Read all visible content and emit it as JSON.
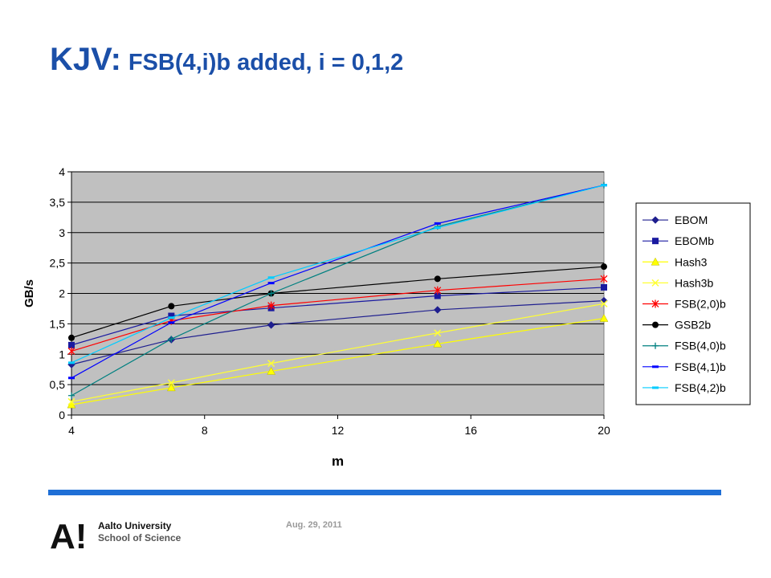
{
  "slide": {
    "title_main": "KJV:",
    "title_sub": "FSB(4,i)b added, i = 0,1,2",
    "footer_date": "Aug. 29, 2011",
    "logo_line1": "Aalto University",
    "logo_line2": "School of Science",
    "logo_mark": "A!",
    "rule_color": "#1f6fd6",
    "title_color": "#1b4fa8"
  },
  "chart_data": {
    "type": "line",
    "xlabel": "m",
    "ylabel": "GB/s",
    "xlim": [
      4,
      20
    ],
    "ylim": [
      0,
      4
    ],
    "x_ticks": [
      4,
      8,
      12,
      16,
      20
    ],
    "y_ticks": [
      "0",
      "0,5",
      "1",
      "1,5",
      "2",
      "2,5",
      "3",
      "3,5",
      "4"
    ],
    "y_tick_values": [
      0,
      0.5,
      1,
      1.5,
      2,
      2.5,
      3,
      3.5,
      4
    ],
    "grid": "horizontal",
    "plot_background": "#c0c0c0",
    "legend_position": "right",
    "x": [
      4,
      7,
      10,
      15,
      20
    ],
    "series": [
      {
        "name": "EBOM",
        "color": "#1f1f8f",
        "marker": "diamond",
        "values": [
          0.83,
          1.24,
          1.48,
          1.73,
          1.88
        ]
      },
      {
        "name": "EBOMb",
        "color": "#1a1aa0",
        "marker": "square",
        "values": [
          1.15,
          1.63,
          1.76,
          1.96,
          2.1
        ]
      },
      {
        "name": "Hash3",
        "color": "#ffff00",
        "marker": "triangle",
        "values": [
          0.17,
          0.45,
          0.72,
          1.17,
          1.59
        ]
      },
      {
        "name": "Hash3b",
        "color": "#ffff33",
        "marker": "x",
        "values": [
          0.22,
          0.53,
          0.85,
          1.35,
          1.83
        ]
      },
      {
        "name": "FSB(2,0)b",
        "color": "#ff0000",
        "marker": "star",
        "values": [
          1.05,
          1.55,
          1.8,
          2.05,
          2.24
        ]
      },
      {
        "name": "GSB2b",
        "color": "#000000",
        "marker": "circle",
        "values": [
          1.27,
          1.79,
          2.0,
          2.24,
          2.44
        ]
      },
      {
        "name": "FSB(4,0)b",
        "color": "#008080",
        "marker": "plus",
        "values": [
          0.32,
          1.25,
          2.0,
          3.1,
          3.78
        ]
      },
      {
        "name": "FSB(4,1)b",
        "color": "#0000ff",
        "marker": "dash",
        "values": [
          0.61,
          1.52,
          2.17,
          3.15,
          3.78
        ]
      },
      {
        "name": "FSB(4,2)b",
        "color": "#00ccff",
        "marker": "dash",
        "values": [
          0.86,
          1.6,
          2.26,
          3.08,
          3.78
        ]
      }
    ]
  }
}
